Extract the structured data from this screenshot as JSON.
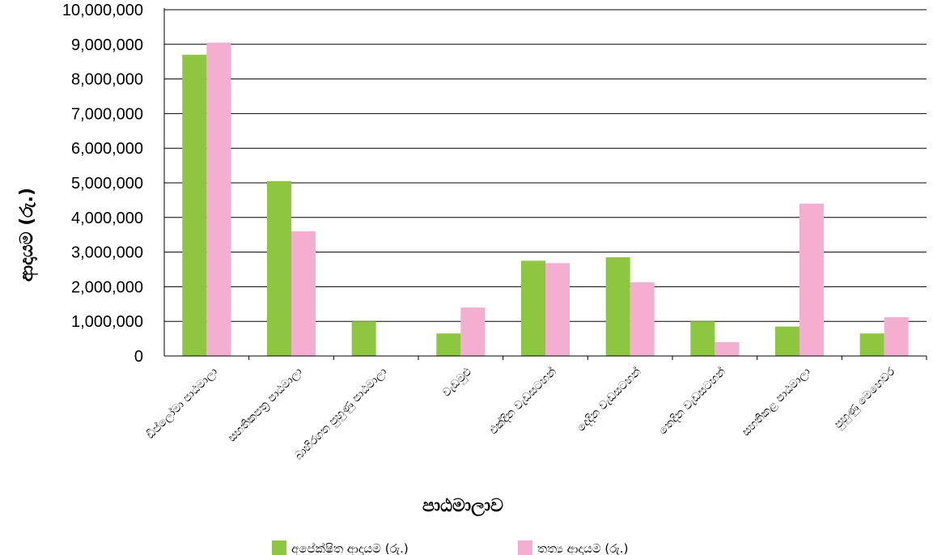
{
  "chart_data": {
    "type": "bar",
    "xlabel": "පාඨමාලාව",
    "ylabel": "ආදායම (රු.)",
    "ylim": [
      0,
      10000000
    ],
    "ytick_labels": [
      "0",
      "1,000,000",
      "2,000,000",
      "3,000,000",
      "4,000,000",
      "5,000,000",
      "6,000,000",
      "7,000,000",
      "8,000,000",
      "9,000,000",
      "10,000,000"
    ],
    "grid": "horizontal",
    "legend_position": "bottom",
    "categories": [
      "ඩිප්ලෝමා පාඨමාලා",
      "සහතිකපත්‍ර පාඨමාලා",
      "බාහිරගත පුහුණු පාඨමාලා",
      "වැඩමුළු",
      "එක්දින වැඩසටහන්",
      "දෙදින වැඩසටහන්",
      "තෙදින වැඩසටහන්",
      "සහතිකළ පාඨමාලා",
      "පුහුණු මෙහෙවර"
    ],
    "series": [
      {
        "name": "අපේක්ෂිත ආදායම (රු.)",
        "color": "#8dc63f",
        "values": [
          8700000,
          5050000,
          1000000,
          650000,
          2750000,
          2850000,
          1000000,
          850000,
          650000
        ]
      },
      {
        "name": "තත්‍ය ආදායම (රු.)",
        "color": "#f4afd0",
        "values": [
          9050000,
          3600000,
          0,
          1400000,
          2680000,
          2130000,
          400000,
          4400000,
          1120000
        ]
      }
    ]
  }
}
